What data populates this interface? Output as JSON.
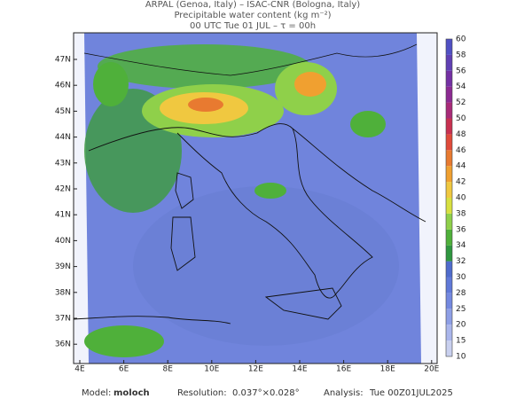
{
  "header": {
    "line1": "ARPAL (Genoa, Italy)  –  ISAC-CNR (Bologna, Italy)",
    "line2": "Precipitable water content (kg m⁻²)",
    "line3": "00 UTC Tue 01 JUL  –  τ = 00h"
  },
  "map": {
    "lat_labels": [
      "47N",
      "46N",
      "45N",
      "44N",
      "43N",
      "42N",
      "41N",
      "40N",
      "39N",
      "38N",
      "37N",
      "36N"
    ],
    "lon_labels": [
      "4E",
      "6E",
      "8E",
      "10E",
      "12E",
      "14E",
      "16E",
      "18E",
      "20E"
    ]
  },
  "colorbar": {
    "levels": [
      10,
      15,
      20,
      25,
      28,
      30,
      32,
      34,
      36,
      38,
      40,
      42,
      44,
      46,
      48,
      50,
      52,
      54,
      56,
      58,
      60
    ],
    "colors": [
      "#c9d0ef",
      "#aab6ec",
      "#8e9fe6",
      "#7489e0",
      "#6079d8",
      "#4f6bcc",
      "#2f9640",
      "#4fb03a",
      "#8fd04a",
      "#d8e040",
      "#f0c840",
      "#f0a030",
      "#e87a30",
      "#e04a3a",
      "#c83050",
      "#a82a78",
      "#8c2a92",
      "#7430a4",
      "#6040b4",
      "#5050c4"
    ]
  },
  "footer": {
    "model_label": "Model:",
    "model": "moloch",
    "resolution_label": "Resolution:",
    "resolution": "0.037°×0.028°",
    "analysis_label": "Analysis:",
    "analysis": "Tue 00Z01JUL2025"
  }
}
